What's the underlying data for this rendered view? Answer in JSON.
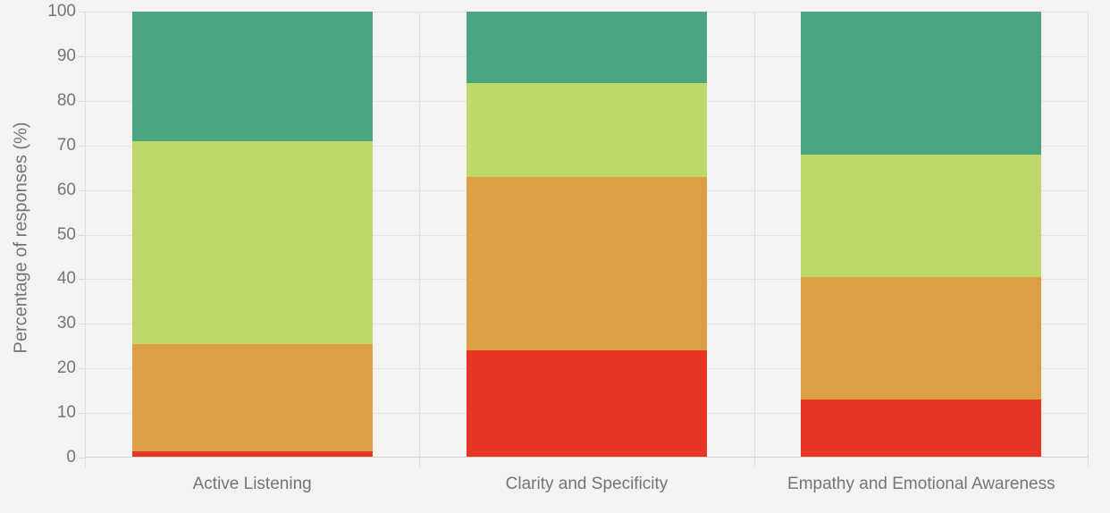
{
  "chart_data": {
    "type": "bar",
    "stacked": true,
    "orientation": "vertical",
    "ylabel": "Percentage of responses (%)",
    "ylim": [
      0,
      100
    ],
    "yticks": [
      0,
      10,
      20,
      30,
      40,
      50,
      60,
      70,
      80,
      90,
      100
    ],
    "grid": true,
    "legend": false,
    "categories": [
      "Active Listening",
      "Clarity and Specificity",
      "Empathy and Emotional Awareness"
    ],
    "series": [
      {
        "name": "red",
        "color": "#e93524",
        "values": [
          1.5,
          24,
          13
        ]
      },
      {
        "name": "orange",
        "color": "#de9e43",
        "values": [
          24,
          39,
          27.5
        ]
      },
      {
        "name": "yellow-green",
        "color": "#bed96a",
        "values": [
          45.5,
          21,
          27.5
        ]
      },
      {
        "name": "teal",
        "color": "#4ba581",
        "values": [
          29,
          16,
          32
        ]
      }
    ]
  },
  "style": {
    "background": "#f4f3f1",
    "gridline_color": "#e5e3e1",
    "vertical_gridline_color": "#e0dedc",
    "axis_line_color": "#d6d4d2",
    "tick_mark_color": "#dbd9d7",
    "text_color": "#737578"
  }
}
